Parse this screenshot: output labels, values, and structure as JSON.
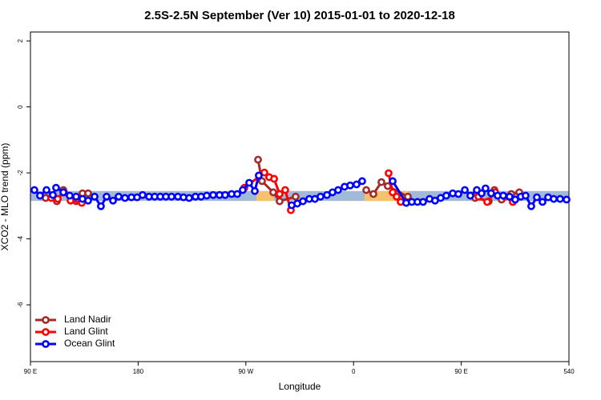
{
  "chart_data": {
    "type": "line",
    "title": "2.5S-2.5N September (Ver 10)   2015-01-01 to 2020-12-18",
    "x_label": "Longitude",
    "y_label": "XCO2 - MLO trend (ppm)",
    "xlim": [
      90,
      540
    ],
    "ylim": [
      -7.72,
      2.27
    ],
    "xticks": [
      {
        "value": 90,
        "label": "90 E"
      },
      180,
      {
        "value": 270,
        "label": "90 W"
      },
      {
        "value": 360,
        "label": "0"
      },
      {
        "value": 450,
        "label": "90 E"
      },
      540
    ],
    "yticks": [
      -6,
      -4,
      -2,
      0,
      2
    ],
    "legend": "bottomleft",
    "bands": [
      {
        "xlim": [
          90,
          540
        ],
        "ylim": [
          -2.55,
          -2.85
        ],
        "color": "#a2b9d8"
      },
      {
        "xlim": [
          278.8,
          293.6
        ],
        "ylim": [
          -2.55,
          -2.85
        ],
        "color": "#f6c270"
      },
      {
        "xlim": [
          369.2,
          406.0
        ],
        "ylim": [
          -2.55,
          -2.85
        ],
        "color": "#f6c270"
      }
    ],
    "series": [
      {
        "name": "Land Nadir",
        "color": "#a52a2a",
        "x": [
          102.7,
          112.1,
          117.5,
          128.2,
          133.5,
          138.2,
          210,
          280.2,
          283.5,
          292.9,
          298.2,
          311.6,
          340,
          370.6,
          376.6,
          383.3,
          388.6,
          405.4,
          430,
          461.6,
          473.0,
          477.7,
          483.7,
          491.8,
          498.5
        ],
        "values": [
          -2.76,
          -2.86,
          -2.52,
          -2.86,
          -2.62,
          -2.62,
          null,
          -1.6,
          -2.25,
          -2.59,
          -2.86,
          -2.72,
          null,
          -2.52,
          -2.64,
          -2.28,
          -2.4,
          -2.72,
          null,
          -2.76,
          -2.86,
          -2.52,
          -2.81,
          -2.64,
          -2.59
        ]
      },
      {
        "name": "Land Glint",
        "color": "#ff0000",
        "x": [
          107.4,
          112.8,
          118.1,
          123.5,
          132.9,
          200,
          268.8,
          285.5,
          289.5,
          293.6,
          298.2,
          302.9,
          307.6,
          350,
          389.3,
          392.7,
          396.0,
          399.4,
          430,
          464.3,
          471.7,
          478.4,
          486.4,
          493.1
        ],
        "values": [
          -2.76,
          -2.79,
          -2.59,
          -2.84,
          -2.91,
          null,
          -2.45,
          -1.99,
          -2.13,
          -2.18,
          -2.64,
          -2.52,
          -3.13,
          null,
          -2.01,
          -2.59,
          -2.72,
          -2.88,
          null,
          -2.72,
          -2.88,
          -2.59,
          -2.72,
          -2.88
        ]
      },
      {
        "name": "Ocean Glint",
        "color": "#0000ff",
        "x": [
          93.3,
          98.0,
          103.4,
          108.7,
          111.4,
          117.5,
          122.8,
          128.2,
          133.5,
          138.2,
          143.6,
          148.9,
          153.6,
          159.0,
          163.7,
          169.0,
          174.4,
          179.1,
          183.7,
          189.1,
          193.8,
          198.5,
          203.2,
          207.9,
          213.2,
          217.9,
          222.6,
          227.9,
          232.6,
          237.3,
          242.7,
          248.0,
          252.7,
          258.1,
          262.8,
          267.4,
          272.8,
          277.5,
          280.8,
          295,
          308.3,
          313.0,
          317.7,
          323.0,
          327.7,
          332.4,
          337.8,
          342.4,
          347.1,
          352.5,
          357.2,
          362.5,
          367.2,
          380,
          392.7,
          404.0,
          408.7,
          413.4,
          418.1,
          423.5,
          428.1,
          432.8,
          437.5,
          442.9,
          447.6,
          453.0,
          457.6,
          463.0,
          467.0,
          470.3,
          475.0,
          480.4,
          485.1,
          490.4,
          495.1,
          499.8,
          503.8,
          508.5,
          513.2,
          517.9,
          522.6,
          527.3,
          532.6,
          538.0
        ],
        "values": [
          -2.52,
          -2.69,
          -2.52,
          -2.67,
          -2.45,
          -2.59,
          -2.69,
          -2.72,
          -2.79,
          -2.84,
          -2.72,
          -3.01,
          -2.72,
          -2.84,
          -2.72,
          -2.76,
          -2.74,
          -2.74,
          -2.67,
          -2.72,
          -2.72,
          -2.72,
          -2.72,
          -2.72,
          -2.72,
          -2.74,
          -2.76,
          -2.72,
          -2.72,
          -2.69,
          -2.67,
          -2.67,
          -2.67,
          -2.64,
          -2.64,
          -2.52,
          -2.3,
          -2.55,
          -2.08,
          null,
          -2.98,
          -2.93,
          -2.86,
          -2.79,
          -2.79,
          -2.72,
          -2.67,
          -2.59,
          -2.52,
          -2.42,
          -2.38,
          -2.35,
          -2.25,
          null,
          -2.25,
          -2.91,
          -2.88,
          -2.88,
          -2.88,
          -2.79,
          -2.84,
          -2.76,
          -2.69,
          -2.62,
          -2.64,
          -2.52,
          -2.69,
          -2.52,
          -2.62,
          -2.47,
          -2.62,
          -2.69,
          -2.69,
          -2.72,
          -2.81,
          -2.72,
          -2.69,
          -3.01,
          -2.74,
          -2.88,
          -2.74,
          -2.79,
          -2.79,
          -2.81
        ]
      }
    ]
  }
}
